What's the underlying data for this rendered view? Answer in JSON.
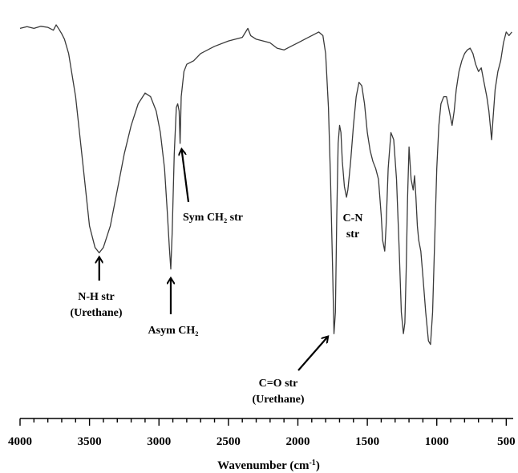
{
  "chart_data": {
    "type": "line",
    "title": "",
    "xlabel": "Wavenumber (cm",
    "xlabel_sup": "-1",
    "xlabel_close": ")",
    "ylabel": "",
    "xlim": [
      4000,
      450
    ],
    "ylim": [
      0,
      100
    ],
    "x_ticks": [
      4000,
      3500,
      3000,
      2500,
      2000,
      1500,
      1000,
      500
    ],
    "x_tick_labels": [
      "4000",
      "3500",
      "3000",
      "2500",
      "2000",
      "1500",
      "1000",
      "500"
    ],
    "series": [
      {
        "x": [
          4000,
          3950,
          3900,
          3850,
          3800,
          3760,
          3740,
          3720,
          3700,
          3680,
          3650,
          3600,
          3550,
          3500,
          3460,
          3430,
          3400,
          3350,
          3300,
          3250,
          3200,
          3150,
          3100,
          3060,
          3020,
          2990,
          2960,
          2940,
          2925,
          2915,
          2905,
          2890,
          2875,
          2865,
          2855,
          2848,
          2840,
          2820,
          2800,
          2750,
          2700,
          2600,
          2500,
          2400,
          2360,
          2340,
          2300,
          2200,
          2150,
          2100,
          2050,
          2000,
          1950,
          1900,
          1850,
          1820,
          1800,
          1780,
          1765,
          1750,
          1740,
          1730,
          1720,
          1710,
          1700,
          1690,
          1680,
          1665,
          1650,
          1640,
          1630,
          1620,
          1600,
          1580,
          1560,
          1540,
          1520,
          1500,
          1480,
          1460,
          1440,
          1420,
          1400,
          1390,
          1375,
          1365,
          1350,
          1330,
          1310,
          1290,
          1270,
          1255,
          1240,
          1230,
          1220,
          1210,
          1200,
          1185,
          1170,
          1160,
          1150,
          1140,
          1130,
          1115,
          1100,
          1080,
          1060,
          1045,
          1030,
          1015,
          1000,
          985,
          970,
          950,
          930,
          910,
          890,
          875,
          860,
          840,
          820,
          800,
          780,
          760,
          740,
          720,
          700,
          680,
          660,
          640,
          625,
          615,
          605,
          595,
          580,
          560,
          540,
          520,
          500,
          480,
          460
        ],
        "y": [
          97,
          97.5,
          97,
          97.6,
          97.3,
          96.5,
          98,
          96.8,
          95.5,
          94,
          90,
          78,
          60,
          42,
          36,
          34.5,
          36,
          42,
          52,
          62,
          70,
          76,
          79,
          78,
          74,
          68,
          58,
          46,
          36,
          30,
          40,
          62,
          75,
          76,
          74,
          65,
          78,
          85,
          87,
          88,
          90,
          92,
          93.5,
          94.5,
          97,
          95,
          94,
          93,
          91.5,
          91,
          92,
          93,
          94,
          95,
          96,
          95,
          90,
          75,
          55,
          30,
          12,
          18,
          45,
          65,
          70,
          68,
          60,
          53,
          50,
          52,
          56,
          60,
          70,
          78,
          82,
          81,
          76,
          68,
          63,
          60,
          58,
          55,
          45,
          38,
          35,
          42,
          58,
          68,
          66,
          55,
          35,
          18,
          12,
          15,
          30,
          50,
          64,
          55,
          52,
          56,
          50,
          42,
          38,
          35,
          28,
          18,
          10,
          9,
          18,
          38,
          58,
          70,
          76,
          78,
          78,
          74,
          70,
          74,
          80,
          85,
          88,
          90,
          91,
          91.5,
          90,
          87,
          85,
          86,
          82,
          78,
          74,
          70,
          66,
          72,
          80,
          85,
          88,
          93,
          96,
          95,
          96
        ]
      }
    ],
    "annotations": [
      {
        "id": "nh",
        "lines": [
          "N-H str",
          "(Urethane)"
        ],
        "x": 3430,
        "y": 34.5
      },
      {
        "id": "asym",
        "lines": [
          "Asym CH₂"
        ],
        "x": 2915,
        "y": 30
      },
      {
        "id": "sym",
        "lines": [
          "Sym CH₂ str"
        ],
        "x": 2848,
        "y": 65
      },
      {
        "id": "cn",
        "lines": [
          "C-N",
          "str"
        ],
        "x": 1640,
        "y": 52
      },
      {
        "id": "co",
        "lines": [
          "C=O str",
          "(Urethane)"
        ],
        "x": 1740,
        "y": 12
      }
    ]
  }
}
